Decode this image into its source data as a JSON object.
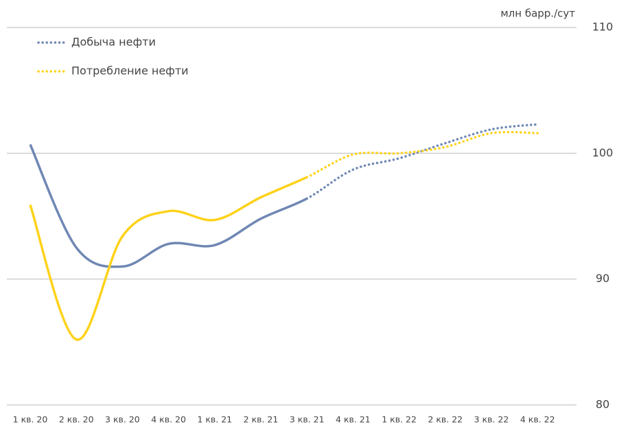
{
  "chart_data": {
    "type": "line",
    "y_label": "млн барр./сут",
    "categories": [
      "1 кв. 20",
      "2 кв. 20",
      "3 кв. 20",
      "4 кв. 20",
      "1 кв. 21",
      "2 кв. 21",
      "3 кв. 21",
      "4 кв. 21",
      "1 кв. 22",
      "2 кв. 22",
      "3 кв. 22",
      "4 кв. 22"
    ],
    "series": [
      {
        "name": "Добыча нефти",
        "color": "#6f87b4",
        "values": [
          100.7,
          92.5,
          91.0,
          92.8,
          92.7,
          94.8,
          96.4,
          98.7,
          99.6,
          100.8,
          101.9,
          102.3
        ]
      },
      {
        "name": "Потребление нефти",
        "color": "#ffd21a",
        "values": [
          95.9,
          85.2,
          93.4,
          95.4,
          94.7,
          96.5,
          98.1,
          99.9,
          100.0,
          100.5,
          101.6,
          101.6
        ]
      }
    ],
    "dotted_from": 6,
    "ylim": [
      80,
      110
    ],
    "yticks": [
      80,
      90,
      100,
      110
    ],
    "grid": true,
    "legend": "top-left"
  }
}
